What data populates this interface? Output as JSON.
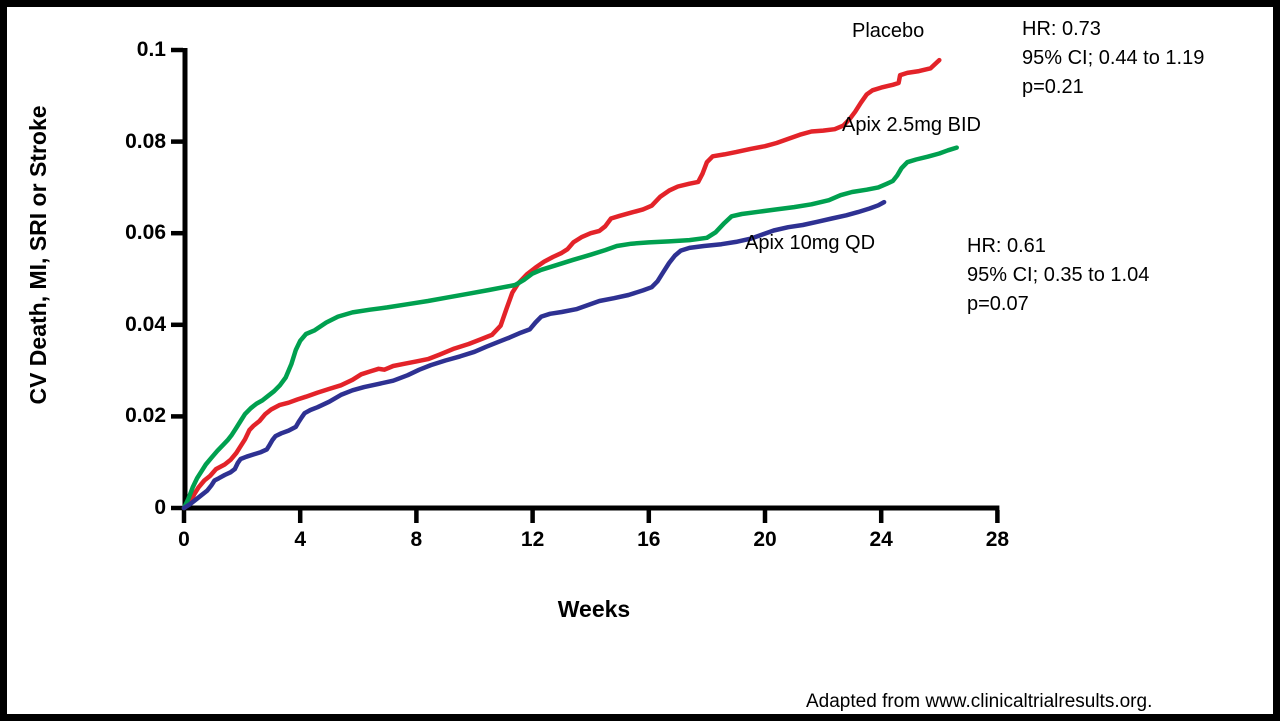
{
  "figure": {
    "background": "#ffffff",
    "frame_border_color": "#000000",
    "axis_color": "#000000"
  },
  "annotations": {
    "placebo_stats": {
      "line1": "HR: 0.73",
      "line2": "95% CI; 0.44 to 1.19",
      "line3": "p=0.21"
    },
    "apix10_stats": {
      "line1": "HR: 0.61",
      "line2": "95% CI; 0.35 to 1.04",
      "line3": "p=0.07"
    }
  },
  "footer": {
    "text": "Adapted from www.clinicaltrialresults.org."
  },
  "chart_data": {
    "type": "line",
    "title": "",
    "xlabel": "Weeks",
    "ylabel": "CV Death, MI, SRI or Stroke",
    "xlim": [
      0,
      28
    ],
    "ylim": [
      0,
      0.1
    ],
    "x_ticks": [
      0,
      4,
      8,
      12,
      16,
      20,
      24,
      28
    ],
    "x_tick_labels": [
      "0",
      "4",
      "8",
      "12",
      "16",
      "20",
      "24",
      "28"
    ],
    "y_ticks": [
      0,
      0.02,
      0.04,
      0.06,
      0.08,
      0.1
    ],
    "y_tick_labels": [
      "0",
      "0.02",
      "0.04",
      "0.06",
      "0.08",
      "0.1"
    ],
    "grid": false,
    "legend_position": "inline-labels",
    "series": [
      {
        "name": "Placebo",
        "color": "#e32329",
        "points": [
          [
            0,
            0
          ],
          [
            0.2,
            0.001
          ],
          [
            0.35,
            0.003
          ],
          [
            0.5,
            0.0045
          ],
          [
            0.7,
            0.006
          ],
          [
            0.9,
            0.007
          ],
          [
            1.1,
            0.0085
          ],
          [
            1.4,
            0.0095
          ],
          [
            1.6,
            0.0105
          ],
          [
            1.8,
            0.012
          ],
          [
            1.95,
            0.0135
          ],
          [
            2.1,
            0.015
          ],
          [
            2.25,
            0.017
          ],
          [
            2.4,
            0.018
          ],
          [
            2.6,
            0.019
          ],
          [
            2.8,
            0.0205
          ],
          [
            3.0,
            0.0215
          ],
          [
            3.3,
            0.0225
          ],
          [
            3.6,
            0.023
          ],
          [
            3.9,
            0.0237
          ],
          [
            4.2,
            0.0243
          ],
          [
            4.6,
            0.0252
          ],
          [
            5.0,
            0.026
          ],
          [
            5.4,
            0.0268
          ],
          [
            5.8,
            0.028
          ],
          [
            6.1,
            0.0292
          ],
          [
            6.4,
            0.0298
          ],
          [
            6.7,
            0.0304
          ],
          [
            6.9,
            0.0302
          ],
          [
            7.2,
            0.031
          ],
          [
            7.6,
            0.0315
          ],
          [
            8.0,
            0.032
          ],
          [
            8.4,
            0.0325
          ],
          [
            8.8,
            0.0335
          ],
          [
            9.3,
            0.0348
          ],
          [
            9.8,
            0.0358
          ],
          [
            10.2,
            0.0368
          ],
          [
            10.6,
            0.0378
          ],
          [
            10.9,
            0.0398
          ],
          [
            11.1,
            0.0435
          ],
          [
            11.3,
            0.047
          ],
          [
            11.5,
            0.049
          ],
          [
            11.8,
            0.051
          ],
          [
            12.1,
            0.0525
          ],
          [
            12.4,
            0.0538
          ],
          [
            12.7,
            0.0548
          ],
          [
            13.0,
            0.0557
          ],
          [
            13.2,
            0.0565
          ],
          [
            13.4,
            0.058
          ],
          [
            13.7,
            0.0592
          ],
          [
            14.0,
            0.06
          ],
          [
            14.3,
            0.0605
          ],
          [
            14.5,
            0.0615
          ],
          [
            14.7,
            0.0632
          ],
          [
            15.0,
            0.0638
          ],
          [
            15.4,
            0.0645
          ],
          [
            15.8,
            0.0652
          ],
          [
            16.1,
            0.066
          ],
          [
            16.4,
            0.068
          ],
          [
            16.7,
            0.0693
          ],
          [
            17.0,
            0.0702
          ],
          [
            17.4,
            0.0708
          ],
          [
            17.7,
            0.0712
          ],
          [
            17.85,
            0.073
          ],
          [
            18.0,
            0.0755
          ],
          [
            18.2,
            0.0768
          ],
          [
            18.6,
            0.0772
          ],
          [
            19.0,
            0.0777
          ],
          [
            19.5,
            0.0784
          ],
          [
            20.0,
            0.079
          ],
          [
            20.4,
            0.0797
          ],
          [
            20.8,
            0.0806
          ],
          [
            21.2,
            0.0815
          ],
          [
            21.6,
            0.0822
          ],
          [
            22.0,
            0.0824
          ],
          [
            22.4,
            0.0827
          ],
          [
            22.7,
            0.0835
          ],
          [
            22.9,
            0.0848
          ],
          [
            23.1,
            0.0865
          ],
          [
            23.3,
            0.0885
          ],
          [
            23.5,
            0.0903
          ],
          [
            23.7,
            0.0912
          ],
          [
            24.0,
            0.0918
          ],
          [
            24.4,
            0.0924
          ],
          [
            24.6,
            0.0928
          ],
          [
            24.65,
            0.0945
          ],
          [
            24.9,
            0.095
          ],
          [
            25.3,
            0.0954
          ],
          [
            25.7,
            0.096
          ],
          [
            26.0,
            0.0978
          ]
        ]
      },
      {
        "name": "Apix 2.5mg BID",
        "color": "#00a04f",
        "points": [
          [
            0,
            0
          ],
          [
            0.15,
            0.002
          ],
          [
            0.3,
            0.0045
          ],
          [
            0.45,
            0.0065
          ],
          [
            0.6,
            0.008
          ],
          [
            0.75,
            0.0095
          ],
          [
            0.95,
            0.011
          ],
          [
            1.15,
            0.0125
          ],
          [
            1.35,
            0.0138
          ],
          [
            1.5,
            0.0148
          ],
          [
            1.65,
            0.016
          ],
          [
            1.8,
            0.0175
          ],
          [
            1.95,
            0.019
          ],
          [
            2.1,
            0.0205
          ],
          [
            2.3,
            0.0218
          ],
          [
            2.5,
            0.0228
          ],
          [
            2.7,
            0.0235
          ],
          [
            2.9,
            0.0245
          ],
          [
            3.1,
            0.0255
          ],
          [
            3.3,
            0.0268
          ],
          [
            3.5,
            0.0285
          ],
          [
            3.7,
            0.0315
          ],
          [
            3.85,
            0.0345
          ],
          [
            4.0,
            0.0365
          ],
          [
            4.2,
            0.038
          ],
          [
            4.5,
            0.0388
          ],
          [
            4.9,
            0.0405
          ],
          [
            5.3,
            0.0418
          ],
          [
            5.8,
            0.0427
          ],
          [
            6.4,
            0.0433
          ],
          [
            7.0,
            0.0438
          ],
          [
            7.7,
            0.0445
          ],
          [
            8.4,
            0.0452
          ],
          [
            9.1,
            0.046
          ],
          [
            9.8,
            0.0468
          ],
          [
            10.5,
            0.0476
          ],
          [
            11.0,
            0.0482
          ],
          [
            11.4,
            0.0487
          ],
          [
            11.7,
            0.0498
          ],
          [
            12.0,
            0.0512
          ],
          [
            12.3,
            0.052
          ],
          [
            12.8,
            0.053
          ],
          [
            13.4,
            0.0542
          ],
          [
            14.0,
            0.0553
          ],
          [
            14.5,
            0.0563
          ],
          [
            14.9,
            0.0572
          ],
          [
            15.4,
            0.0577
          ],
          [
            16.0,
            0.058
          ],
          [
            16.7,
            0.0582
          ],
          [
            17.4,
            0.0585
          ],
          [
            18.0,
            0.059
          ],
          [
            18.3,
            0.0602
          ],
          [
            18.6,
            0.0622
          ],
          [
            18.85,
            0.0637
          ],
          [
            19.2,
            0.0642
          ],
          [
            19.8,
            0.0647
          ],
          [
            20.4,
            0.0652
          ],
          [
            21.0,
            0.0657
          ],
          [
            21.6,
            0.0663
          ],
          [
            22.2,
            0.0672
          ],
          [
            22.6,
            0.0683
          ],
          [
            23.0,
            0.069
          ],
          [
            23.5,
            0.0695
          ],
          [
            23.9,
            0.07
          ],
          [
            24.2,
            0.0708
          ],
          [
            24.4,
            0.0714
          ],
          [
            24.55,
            0.0726
          ],
          [
            24.7,
            0.0742
          ],
          [
            24.9,
            0.0755
          ],
          [
            25.2,
            0.0761
          ],
          [
            25.6,
            0.0767
          ],
          [
            26.0,
            0.0774
          ],
          [
            26.3,
            0.0781
          ],
          [
            26.6,
            0.0787
          ]
        ]
      },
      {
        "name": "Apix 10mg QD",
        "color": "#2e3192",
        "points": [
          [
            0,
            0
          ],
          [
            0.2,
            0.0008
          ],
          [
            0.4,
            0.0018
          ],
          [
            0.6,
            0.0028
          ],
          [
            0.8,
            0.0038
          ],
          [
            0.95,
            0.005
          ],
          [
            1.05,
            0.006
          ],
          [
            1.2,
            0.0065
          ],
          [
            1.4,
            0.0072
          ],
          [
            1.6,
            0.0078
          ],
          [
            1.75,
            0.0085
          ],
          [
            1.85,
            0.0098
          ],
          [
            1.95,
            0.0107
          ],
          [
            2.15,
            0.0112
          ],
          [
            2.4,
            0.0117
          ],
          [
            2.65,
            0.0122
          ],
          [
            2.85,
            0.0128
          ],
          [
            2.95,
            0.0138
          ],
          [
            3.05,
            0.0149
          ],
          [
            3.15,
            0.0157
          ],
          [
            3.35,
            0.0163
          ],
          [
            3.6,
            0.0169
          ],
          [
            3.85,
            0.0177
          ],
          [
            3.95,
            0.0188
          ],
          [
            4.05,
            0.0198
          ],
          [
            4.15,
            0.0207
          ],
          [
            4.35,
            0.0214
          ],
          [
            4.6,
            0.022
          ],
          [
            5.0,
            0.0232
          ],
          [
            5.4,
            0.0247
          ],
          [
            5.8,
            0.0257
          ],
          [
            6.2,
            0.0264
          ],
          [
            6.7,
            0.0271
          ],
          [
            7.2,
            0.0278
          ],
          [
            7.7,
            0.029
          ],
          [
            8.1,
            0.0302
          ],
          [
            8.5,
            0.0312
          ],
          [
            9.0,
            0.0322
          ],
          [
            9.5,
            0.0331
          ],
          [
            10.0,
            0.0341
          ],
          [
            10.4,
            0.0352
          ],
          [
            10.8,
            0.0362
          ],
          [
            11.2,
            0.0372
          ],
          [
            11.6,
            0.0383
          ],
          [
            11.9,
            0.039
          ],
          [
            12.1,
            0.0405
          ],
          [
            12.3,
            0.0418
          ],
          [
            12.6,
            0.0424
          ],
          [
            13.0,
            0.0428
          ],
          [
            13.5,
            0.0434
          ],
          [
            13.9,
            0.0443
          ],
          [
            14.3,
            0.0452
          ],
          [
            14.8,
            0.0458
          ],
          [
            15.3,
            0.0465
          ],
          [
            15.8,
            0.0475
          ],
          [
            16.1,
            0.0482
          ],
          [
            16.3,
            0.0495
          ],
          [
            16.5,
            0.0515
          ],
          [
            16.7,
            0.0535
          ],
          [
            16.9,
            0.0551
          ],
          [
            17.1,
            0.0562
          ],
          [
            17.4,
            0.0568
          ],
          [
            17.9,
            0.0572
          ],
          [
            18.5,
            0.0576
          ],
          [
            19.0,
            0.0581
          ],
          [
            19.5,
            0.0588
          ],
          [
            19.9,
            0.0597
          ],
          [
            20.3,
            0.0606
          ],
          [
            20.8,
            0.0613
          ],
          [
            21.3,
            0.0618
          ],
          [
            21.8,
            0.0625
          ],
          [
            22.3,
            0.0632
          ],
          [
            22.8,
            0.0639
          ],
          [
            23.2,
            0.0646
          ],
          [
            23.6,
            0.0654
          ],
          [
            23.9,
            0.0661
          ],
          [
            24.1,
            0.0668
          ]
        ]
      }
    ]
  }
}
